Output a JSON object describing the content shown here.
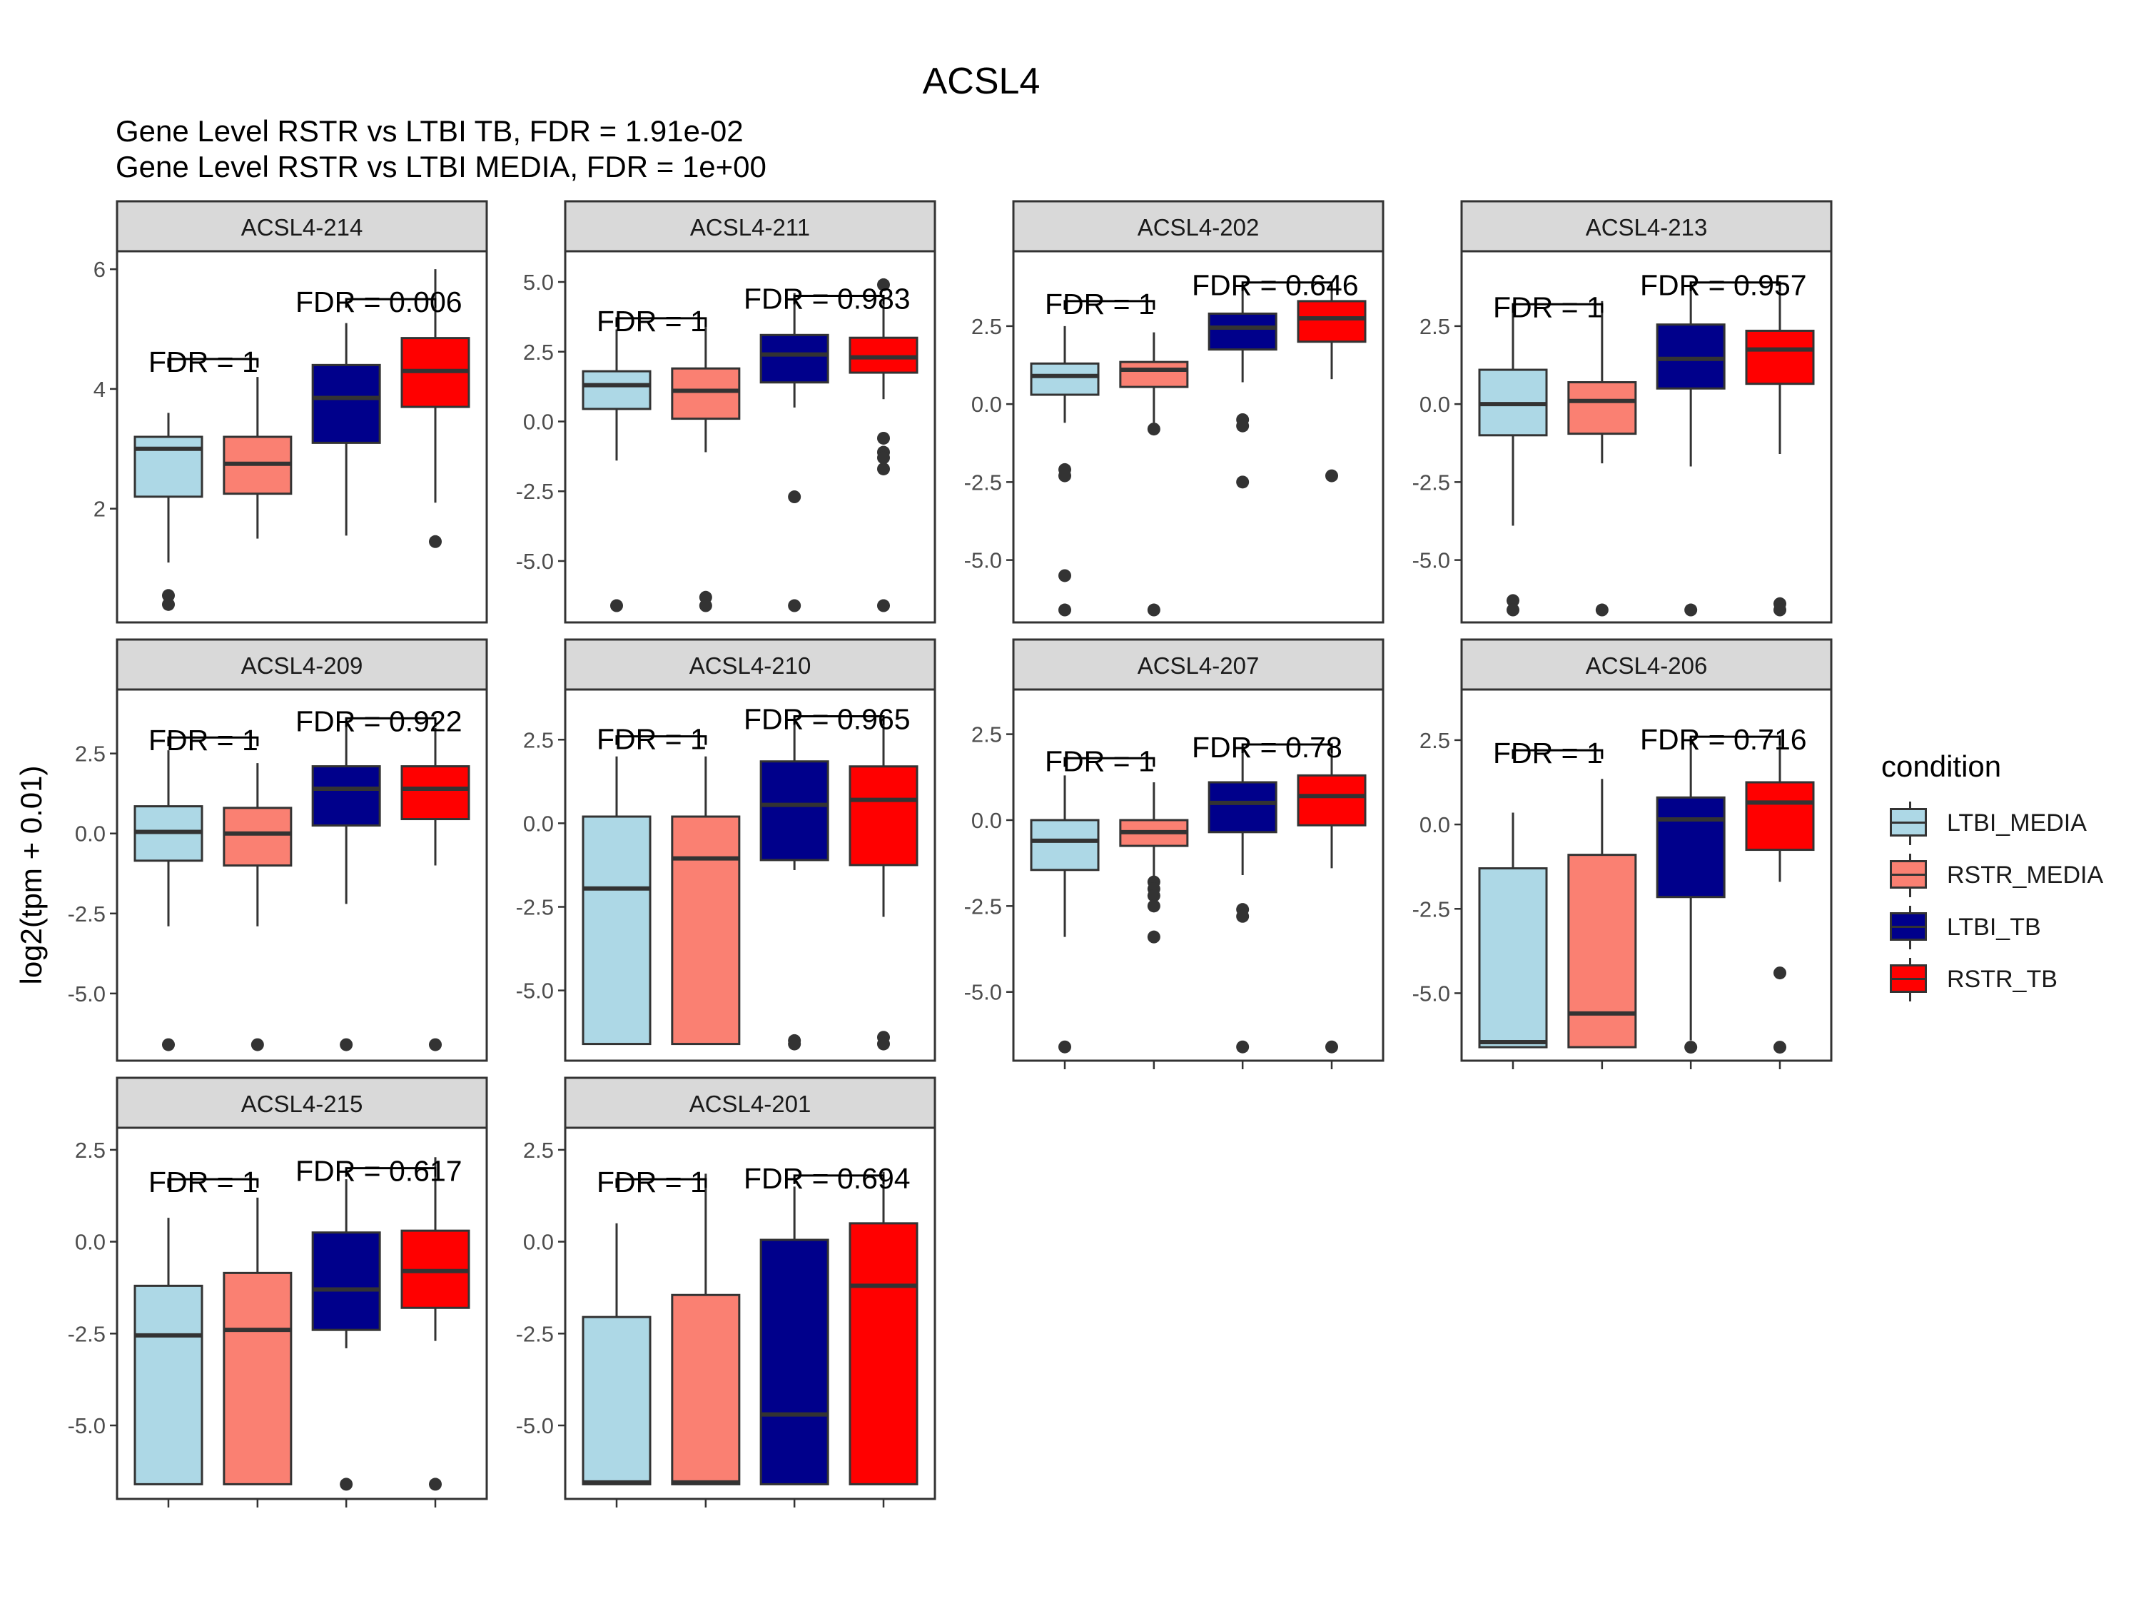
{
  "chart_data": {
    "type": "box",
    "title": "ACSL4",
    "subtitle_lines": [
      "Gene Level RSTR vs LTBI TB, FDR =  1.91e-02",
      "Gene Level RSTR vs LTBI MEDIA, FDR =  1e+00"
    ],
    "ylabel": "log2(tpm + 0.01)",
    "legend": {
      "title": "condition",
      "placement": "right",
      "entries": [
        "LTBI_MEDIA",
        "RSTR_MEDIA",
        "LTBI_TB",
        "RSTR_TB"
      ]
    },
    "colors": {
      "LTBI_MEDIA": "#ADD8E6",
      "RSTR_MEDIA": "#FA8072",
      "LTBI_TB": "#00008B",
      "RSTR_TB": "#FF0000"
    },
    "panels": [
      {
        "name": "ACSL4-214",
        "ylim": [
          0.1,
          6.3
        ],
        "yticks": [
          2,
          4,
          6
        ],
        "ytick_labels": [
          "2",
          "4",
          "6"
        ],
        "boxes": [
          {
            "condition": "LTBI_MEDIA",
            "q1": 2.2,
            "median": 3.0,
            "q3": 3.2,
            "whisker_low": 1.1,
            "whisker_high": 3.6,
            "outliers": [
              0.4,
              0.55
            ]
          },
          {
            "condition": "RSTR_MEDIA",
            "q1": 2.25,
            "median": 2.75,
            "q3": 3.2,
            "whisker_low": 1.5,
            "whisker_high": 4.2,
            "outliers": []
          },
          {
            "condition": "LTBI_TB",
            "q1": 3.1,
            "median": 3.85,
            "q3": 4.4,
            "whisker_low": 1.55,
            "whisker_high": 5.1,
            "outliers": []
          },
          {
            "condition": "RSTR_TB",
            "q1": 3.7,
            "median": 4.3,
            "q3": 4.85,
            "whisker_low": 2.1,
            "whisker_high": 6.0,
            "outliers": [
              1.45
            ]
          }
        ],
        "comparisons": [
          {
            "label": "FDR =  1",
            "group": "media",
            "value": 4.5
          },
          {
            "label": "FDR =  0.006",
            "group": "tb",
            "value": 5.5
          }
        ]
      },
      {
        "name": "ACSL4-211",
        "ylim": [
          -7.2,
          6.1
        ],
        "yticks": [
          -5.0,
          -2.5,
          0.0,
          2.5,
          5.0
        ],
        "ytick_labels": [
          "-5.0",
          "-2.5",
          "0.0",
          "2.5",
          "5.0"
        ],
        "boxes": [
          {
            "condition": "LTBI_MEDIA",
            "q1": 0.45,
            "median": 1.3,
            "q3": 1.8,
            "whisker_low": -1.4,
            "whisker_high": 3.3,
            "outliers": [
              -6.6
            ]
          },
          {
            "condition": "RSTR_MEDIA",
            "q1": 0.1,
            "median": 1.1,
            "q3": 1.9,
            "whisker_low": -1.1,
            "whisker_high": 3.4,
            "outliers": [
              -6.3,
              -6.6
            ]
          },
          {
            "condition": "LTBI_TB",
            "q1": 1.4,
            "median": 2.4,
            "q3": 3.1,
            "whisker_low": 0.5,
            "whisker_high": 4.6,
            "outliers": [
              -2.7,
              -6.6
            ]
          },
          {
            "condition": "RSTR_TB",
            "q1": 1.75,
            "median": 2.3,
            "q3": 3.0,
            "whisker_low": 0.8,
            "whisker_high": 4.5,
            "outliers": [
              4.9,
              -0.6,
              -1.1,
              -1.3,
              -1.7,
              -6.6
            ]
          }
        ],
        "comparisons": [
          {
            "label": "FDR =  1",
            "group": "media",
            "value": 3.7
          },
          {
            "label": "FDR =  0.983",
            "group": "tb",
            "value": 4.5
          }
        ]
      },
      {
        "name": "ACSL4-202",
        "ylim": [
          -7.0,
          4.9
        ],
        "yticks": [
          -5.0,
          -2.5,
          0.0,
          2.5
        ],
        "ytick_labels": [
          "-5.0",
          "-2.5",
          "0.0",
          "2.5"
        ],
        "boxes": [
          {
            "condition": "LTBI_MEDIA",
            "q1": 0.3,
            "median": 0.9,
            "q3": 1.3,
            "whisker_low": -0.6,
            "whisker_high": 2.5,
            "outliers": [
              -2.1,
              -2.3,
              -5.5,
              -6.6
            ]
          },
          {
            "condition": "RSTR_MEDIA",
            "q1": 0.55,
            "median": 1.1,
            "q3": 1.35,
            "whisker_low": -0.6,
            "whisker_high": 2.3,
            "outliers": [
              -0.8,
              -6.6
            ]
          },
          {
            "condition": "LTBI_TB",
            "q1": 1.75,
            "median": 2.45,
            "q3": 2.9,
            "whisker_low": 0.7,
            "whisker_high": 3.8,
            "outliers": [
              -0.5,
              -0.7,
              -2.5
            ]
          },
          {
            "condition": "RSTR_TB",
            "q1": 2.0,
            "median": 2.75,
            "q3": 3.3,
            "whisker_low": 0.8,
            "whisker_high": 3.8,
            "outliers": [
              -2.3
            ]
          }
        ],
        "comparisons": [
          {
            "label": "FDR =  1",
            "group": "media",
            "value": 3.3
          },
          {
            "label": "FDR =  0.646",
            "group": "tb",
            "value": 3.9
          }
        ]
      },
      {
        "name": "ACSL4-213",
        "ylim": [
          -7.0,
          4.9
        ],
        "yticks": [
          -5.0,
          -2.5,
          0.0,
          2.5
        ],
        "ytick_labels": [
          "-5.0",
          "-2.5",
          "0.0",
          "2.5"
        ],
        "boxes": [
          {
            "condition": "LTBI_MEDIA",
            "q1": -1.0,
            "median": 0.0,
            "q3": 1.1,
            "whisker_low": -3.9,
            "whisker_high": 3.2,
            "outliers": [
              -6.3,
              -6.6
            ]
          },
          {
            "condition": "RSTR_MEDIA",
            "q1": -0.95,
            "median": 0.1,
            "q3": 0.7,
            "whisker_low": -1.9,
            "whisker_high": 3.3,
            "outliers": [
              -6.6
            ]
          },
          {
            "condition": "LTBI_TB",
            "q1": 0.5,
            "median": 1.45,
            "q3": 2.55,
            "whisker_low": -2.0,
            "whisker_high": 3.9,
            "outliers": [
              -6.6
            ]
          },
          {
            "condition": "RSTR_TB",
            "q1": 0.65,
            "median": 1.75,
            "q3": 2.35,
            "whisker_low": -1.6,
            "whisker_high": 3.9,
            "outliers": [
              -6.4,
              -6.6
            ]
          }
        ],
        "comparisons": [
          {
            "label": "FDR =  1",
            "group": "media",
            "value": 3.2
          },
          {
            "label": "FDR =  0.957",
            "group": "tb",
            "value": 3.9
          }
        ]
      },
      {
        "name": "ACSL4-209",
        "ylim": [
          -7.1,
          4.5
        ],
        "yticks": [
          -5.0,
          -2.5,
          0.0,
          2.5
        ],
        "ytick_labels": [
          "-5.0",
          "-2.5",
          "0.0",
          "2.5"
        ],
        "boxes": [
          {
            "condition": "LTBI_MEDIA",
            "q1": -0.85,
            "median": 0.05,
            "q3": 0.85,
            "whisker_low": -2.9,
            "whisker_high": 2.6,
            "outliers": [
              -6.6
            ]
          },
          {
            "condition": "RSTR_MEDIA",
            "q1": -1.0,
            "median": 0.0,
            "q3": 0.8,
            "whisker_low": -2.9,
            "whisker_high": 2.2,
            "outliers": [
              -6.6
            ]
          },
          {
            "condition": "LTBI_TB",
            "q1": 0.25,
            "median": 1.4,
            "q3": 2.1,
            "whisker_low": -2.2,
            "whisker_high": 3.6,
            "outliers": [
              -6.6
            ]
          },
          {
            "condition": "RSTR_TB",
            "q1": 0.45,
            "median": 1.4,
            "q3": 2.1,
            "whisker_low": -1.0,
            "whisker_high": 3.3,
            "outliers": [
              -6.6
            ]
          }
        ],
        "comparisons": [
          {
            "label": "FDR =  1",
            "group": "media",
            "value": 3.0
          },
          {
            "label": "FDR =  0.922",
            "group": "tb",
            "value": 3.6
          }
        ]
      },
      {
        "name": "ACSL4-210",
        "ylim": [
          -7.1,
          4.0
        ],
        "yticks": [
          -5.0,
          -2.5,
          0.0,
          2.5
        ],
        "ytick_labels": [
          "-5.0",
          "-2.5",
          "0.0",
          "2.5"
        ],
        "boxes": [
          {
            "condition": "LTBI_MEDIA",
            "q1": -6.6,
            "median": -1.95,
            "q3": 0.2,
            "whisker_low": -6.6,
            "whisker_high": 2.0,
            "outliers": []
          },
          {
            "condition": "RSTR_MEDIA",
            "q1": -6.6,
            "median": -1.05,
            "q3": 0.2,
            "whisker_low": -6.6,
            "whisker_high": 2.0,
            "outliers": []
          },
          {
            "condition": "LTBI_TB",
            "q1": -1.1,
            "median": 0.55,
            "q3": 1.85,
            "whisker_low": -1.4,
            "whisker_high": 3.1,
            "outliers": [
              -6.5,
              -6.6
            ]
          },
          {
            "condition": "RSTR_TB",
            "q1": -1.25,
            "median": 0.7,
            "q3": 1.7,
            "whisker_low": -2.8,
            "whisker_high": 3.1,
            "outliers": [
              -6.4,
              -6.6
            ]
          }
        ],
        "comparisons": [
          {
            "label": "FDR =  1",
            "group": "media",
            "value": 2.6
          },
          {
            "label": "FDR =  0.965",
            "group": "tb",
            "value": 3.2
          }
        ]
      },
      {
        "name": "ACSL4-207",
        "ylim": [
          -7.0,
          3.8
        ],
        "yticks": [
          -5.0,
          -2.5,
          0.0,
          2.5
        ],
        "ytick_labels": [
          "-5.0",
          "-2.5",
          "0.0",
          "2.5"
        ],
        "boxes": [
          {
            "condition": "LTBI_MEDIA",
            "q1": -1.45,
            "median": -0.6,
            "q3": 0.0,
            "whisker_low": -3.4,
            "whisker_high": 1.3,
            "outliers": [
              -6.6
            ]
          },
          {
            "condition": "RSTR_MEDIA",
            "q1": -0.75,
            "median": -0.35,
            "q3": 0.0,
            "whisker_low": -1.7,
            "whisker_high": 1.1,
            "outliers": [
              -1.8,
              -2.0,
              -2.2,
              -2.5,
              -3.4
            ]
          },
          {
            "condition": "LTBI_TB",
            "q1": -0.35,
            "median": 0.5,
            "q3": 1.1,
            "whisker_low": -1.6,
            "whisker_high": 2.1,
            "outliers": [
              -2.6,
              -2.8,
              -6.6
            ]
          },
          {
            "condition": "RSTR_TB",
            "q1": -0.15,
            "median": 0.7,
            "q3": 1.3,
            "whisker_low": -1.4,
            "whisker_high": 2.2,
            "outliers": [
              -6.6
            ]
          }
        ],
        "comparisons": [
          {
            "label": "FDR =  1",
            "group": "media",
            "value": 1.8
          },
          {
            "label": "FDR =  0.78",
            "group": "tb",
            "value": 2.2
          }
        ]
      },
      {
        "name": "ACSL4-206",
        "ylim": [
          -7.0,
          4.0
        ],
        "yticks": [
          -5.0,
          -2.5,
          0.0,
          2.5
        ],
        "ytick_labels": [
          "-5.0",
          "-2.5",
          "0.0",
          "2.5"
        ],
        "boxes": [
          {
            "condition": "LTBI_MEDIA",
            "q1": -6.6,
            "median": -6.45,
            "q3": -1.3,
            "whisker_low": -6.6,
            "whisker_high": 0.35,
            "outliers": []
          },
          {
            "condition": "RSTR_MEDIA",
            "q1": -6.6,
            "median": -5.6,
            "q3": -0.9,
            "whisker_low": -6.6,
            "whisker_high": 1.35,
            "outliers": []
          },
          {
            "condition": "LTBI_TB",
            "q1": -2.15,
            "median": 0.15,
            "q3": 0.8,
            "whisker_low": -6.4,
            "whisker_high": 2.6,
            "outliers": [
              -6.6
            ]
          },
          {
            "condition": "RSTR_TB",
            "q1": -0.75,
            "median": 0.65,
            "q3": 1.25,
            "whisker_low": -1.7,
            "whisker_high": 2.6,
            "outliers": [
              -4.4,
              -6.6
            ]
          }
        ],
        "comparisons": [
          {
            "label": "FDR =  1",
            "group": "media",
            "value": 2.2
          },
          {
            "label": "FDR =  0.716",
            "group": "tb",
            "value": 2.6
          }
        ]
      },
      {
        "name": "ACSL4-215",
        "ylim": [
          -7.0,
          3.1
        ],
        "yticks": [
          -5.0,
          -2.5,
          0.0,
          2.5
        ],
        "ytick_labels": [
          "-5.0",
          "-2.5",
          "0.0",
          "2.5"
        ],
        "boxes": [
          {
            "condition": "LTBI_MEDIA",
            "q1": -6.6,
            "median": -2.55,
            "q3": -1.2,
            "whisker_low": -6.6,
            "whisker_high": 0.65,
            "outliers": []
          },
          {
            "condition": "RSTR_MEDIA",
            "q1": -6.6,
            "median": -2.4,
            "q3": -0.85,
            "whisker_low": -6.6,
            "whisker_high": 1.2,
            "outliers": []
          },
          {
            "condition": "LTBI_TB",
            "q1": -2.4,
            "median": -1.3,
            "q3": 0.25,
            "whisker_low": -2.9,
            "whisker_high": 1.7,
            "outliers": [
              -6.6
            ]
          },
          {
            "condition": "RSTR_TB",
            "q1": -1.8,
            "median": -0.8,
            "q3": 0.3,
            "whisker_low": -2.7,
            "whisker_high": 2.3,
            "outliers": [
              -6.6
            ]
          }
        ],
        "comparisons": [
          {
            "label": "FDR =  1",
            "group": "media",
            "value": 1.7
          },
          {
            "label": "FDR =  0.617",
            "group": "tb",
            "value": 2.0
          }
        ]
      },
      {
        "name": "ACSL4-201",
        "ylim": [
          -7.0,
          3.1
        ],
        "yticks": [
          -5.0,
          -2.5,
          0.0,
          2.5
        ],
        "ytick_labels": [
          "-5.0",
          "-2.5",
          "0.0",
          "2.5"
        ],
        "boxes": [
          {
            "condition": "LTBI_MEDIA",
            "q1": -6.6,
            "median": -6.55,
            "q3": -2.05,
            "whisker_low": -6.6,
            "whisker_high": 0.5,
            "outliers": []
          },
          {
            "condition": "RSTR_MEDIA",
            "q1": -6.6,
            "median": -6.55,
            "q3": -1.45,
            "whisker_low": -6.6,
            "whisker_high": 1.85,
            "outliers": []
          },
          {
            "condition": "LTBI_TB",
            "q1": -6.6,
            "median": -4.7,
            "q3": 0.05,
            "whisker_low": -6.6,
            "whisker_high": 1.5,
            "outliers": []
          },
          {
            "condition": "RSTR_TB",
            "q1": -6.6,
            "median": -1.2,
            "q3": 0.5,
            "whisker_low": -6.6,
            "whisker_high": 1.9,
            "outliers": []
          }
        ],
        "comparisons": [
          {
            "label": "FDR =  1",
            "group": "media",
            "value": 1.7
          },
          {
            "label": "FDR =  0.694",
            "group": "tb",
            "value": 1.8
          }
        ]
      }
    ]
  }
}
